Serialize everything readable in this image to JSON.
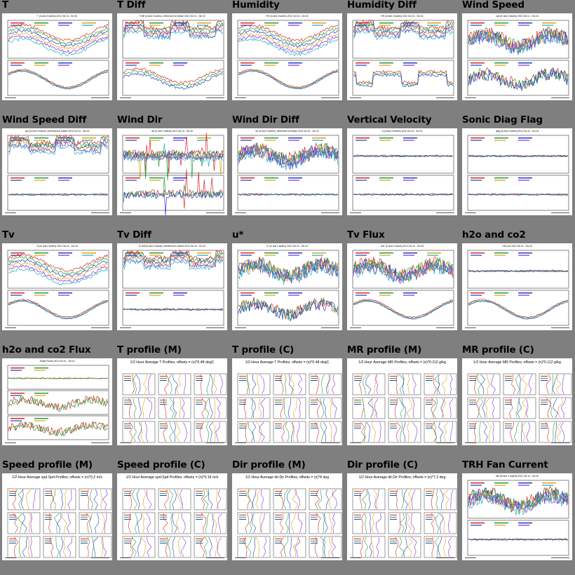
{
  "thumbnails": [
    {
      "title": "T",
      "kind": "ts",
      "subtitle": "T (m and 2 towers) 2012 Oct 14 - Oct 16",
      "top": "multi",
      "bottom": "smooth"
    },
    {
      "title": "T Diff",
      "kind": "ts",
      "subtitle": "T Diff (m and 2 towers), referenced to bottom 2012 Oct 14 - Oct 16",
      "top": "band",
      "bottom": "multi"
    },
    {
      "title": "Humidity",
      "kind": "ts",
      "subtitle": "RH (m and 2 towers) 2012 Oct 14 - Oct 16",
      "top": "multi",
      "bottom": "smooth"
    },
    {
      "title": "Humidity Diff",
      "kind": "ts",
      "subtitle": "RH (m and 2 towers) 2012 Oct 14 - Oct 16",
      "top": "band",
      "bottom": "dip"
    },
    {
      "title": "Wind Speed",
      "kind": "ts",
      "subtitle": "spd (m and 2 towers) 2012 Oct 14 - Oct 16",
      "top": "noisy",
      "bottom": "noisy"
    },
    {
      "title": "Wind Speed Diff",
      "kind": "ts",
      "subtitle": "spd (m and 2 towers), referenced to bottom 2012 Oct 14 - Oct 16",
      "top": "band",
      "bottom": "flat"
    },
    {
      "title": "Wind Dir",
      "kind": "ts",
      "subtitle": "dir (m and 2 towers) 2012 Oct 14 - Oct 16",
      "top": "spiky",
      "bottom": "spiky"
    },
    {
      "title": "Wind Dir Diff",
      "kind": "ts",
      "subtitle": "dir (m and 2 towers), referenced to bottom 2012 Oct 14 - Oct 16",
      "top": "noisy",
      "bottom": "flat"
    },
    {
      "title": "Vertical Velocity",
      "kind": "ts",
      "subtitle": "w (m and 2 towers) 2012 Oct 14 - Oct 16",
      "top": "flat",
      "bottom": "flat"
    },
    {
      "title": "Sonic Diag Flag",
      "kind": "ts",
      "subtitle": "diag (m and 2 towers) 2012 Oct 14 - Oct 16",
      "top": "flat",
      "bottom": "flat"
    },
    {
      "title": "Tv",
      "kind": "ts",
      "subtitle": "Tc (m and 2 towers) 2012 Oct 14 - Oct 16",
      "top": "multi",
      "bottom": "smooth"
    },
    {
      "title": "Tv Diff",
      "kind": "ts",
      "subtitle": "Tc Diff (m and 2 towers), referenced to bottom 2012 Oct 14 - Oct 16",
      "top": "band",
      "bottom": "flat"
    },
    {
      "title": "u*",
      "kind": "ts",
      "subtitle": "u* (m and 2 towers) 2012 Oct 14 - Oct 16",
      "top": "noisy",
      "bottom": "noisy"
    },
    {
      "title": "Tv Flux",
      "kind": "ts",
      "subtitle": "w'tc' (m and 2 towers) 2012 Oct 14 - Oct 16",
      "top": "noisy",
      "bottom": "smooth"
    },
    {
      "title": "h2o and co2",
      "kind": "ts",
      "subtitle": "H2o,co2 2012 Oct 14 - Oct 16",
      "top": "flat",
      "bottom": "smooth"
    },
    {
      "title": "h2o and co2 Flux",
      "kind": "ts3",
      "subtitle": "Scalar Fluxes 2012 Oct 14 - Oct 16",
      "top": "flat",
      "bottom": "noisy"
    },
    {
      "title": "T profile (M)",
      "kind": "prof",
      "subtitle": "1/2 Hour Average T Profiles; offsets = (n)*0.48 degC"
    },
    {
      "title": "T profile (C)",
      "kind": "prof",
      "subtitle": "1/2 Hour Average T Profiles; offsets = (n)*0.48 degC"
    },
    {
      "title": "MR profile (M)",
      "kind": "prof",
      "subtitle": "1/2 Hour Average MR Profiles; offsets = (n)*0.112 g/kg"
    },
    {
      "title": "MR profile (C)",
      "kind": "prof",
      "subtitle": "1/2 Hour Average MR Profiles; offsets = (n)*0.112 g/kg"
    },
    {
      "title": "Speed profile (M)",
      "kind": "prof",
      "subtitle": "1/2 Hour Average spd.Spd Profiles; offsets = (n)*0.2 m/s"
    },
    {
      "title": "Speed profile (C)",
      "kind": "prof",
      "subtitle": "1/2 Hour Average spd.Spd Profiles; offsets = (n)*0.16 m/s"
    },
    {
      "title": "Dir profile (M)",
      "kind": "prof",
      "subtitle": "1/2 Hour Average dir.Dir Profiles; offsets = (n)*8 deg"
    },
    {
      "title": "Dir profile (C)",
      "kind": "prof",
      "subtitle": "1/2 Hour Average dir.Dir Profiles; offsets = (n)*7.2 deg"
    },
    {
      "title": "TRH Fan Current",
      "kind": "ts",
      "subtitle": "ifan (M and C towers) 2012 Oct 14 - Oct 16",
      "top": "noisy",
      "bottom": "flat"
    }
  ],
  "colors": {
    "background": "#7f7f7f",
    "thumb_bg": "#ffffff",
    "series": [
      "#d62828",
      "#2a9d3a",
      "#1f3fbf",
      "#e0a010",
      "#8a2be2",
      "#17b0c0",
      "#8b4513",
      "#000000"
    ]
  }
}
